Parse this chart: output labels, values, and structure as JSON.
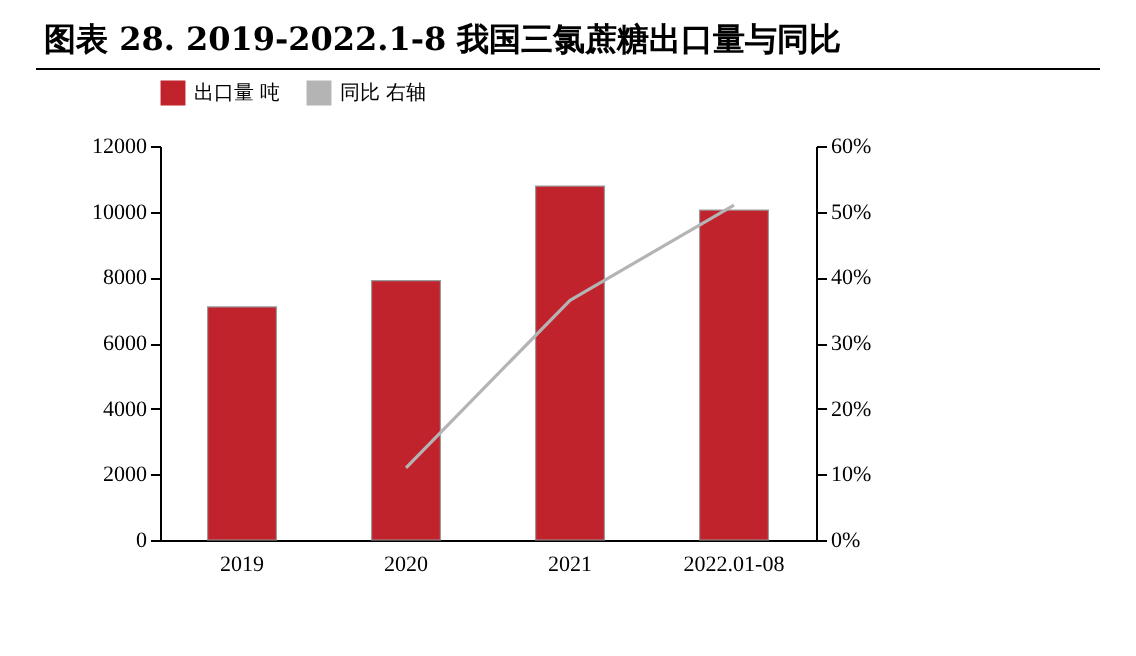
{
  "chart_data": {
    "type": "bar",
    "title": "图表 28. 2019-2022.1-8 我国三氯蔗糖出口量与同比",
    "categories": [
      "2019",
      "2020",
      "2021",
      "2022.01-08"
    ],
    "series": [
      {
        "name": "出口量 吨",
        "color": "#c0232c",
        "values": [
          7100,
          7900,
          10780,
          10050
        ]
      },
      {
        "name": "同比 右轴",
        "type": "line",
        "axis": "y2",
        "color": "#b4b4b4",
        "values": [
          null,
          11,
          36.5,
          51
        ]
      }
    ],
    "ylim": [
      0,
      12000
    ],
    "yticks": [
      0,
      2000,
      4000,
      6000,
      8000,
      10000,
      12000
    ],
    "y2lim": [
      0,
      60
    ],
    "y2ticks": [
      {
        "value": 0,
        "label": "0%"
      },
      {
        "value": 10,
        "label": "10%"
      },
      {
        "value": 20,
        "label": "20%"
      },
      {
        "value": 30,
        "label": "30%"
      },
      {
        "value": 40,
        "label": "40%"
      },
      {
        "value": 50,
        "label": "50%"
      },
      {
        "value": 60,
        "label": "60%"
      }
    ],
    "legend": "top",
    "grid": false
  }
}
